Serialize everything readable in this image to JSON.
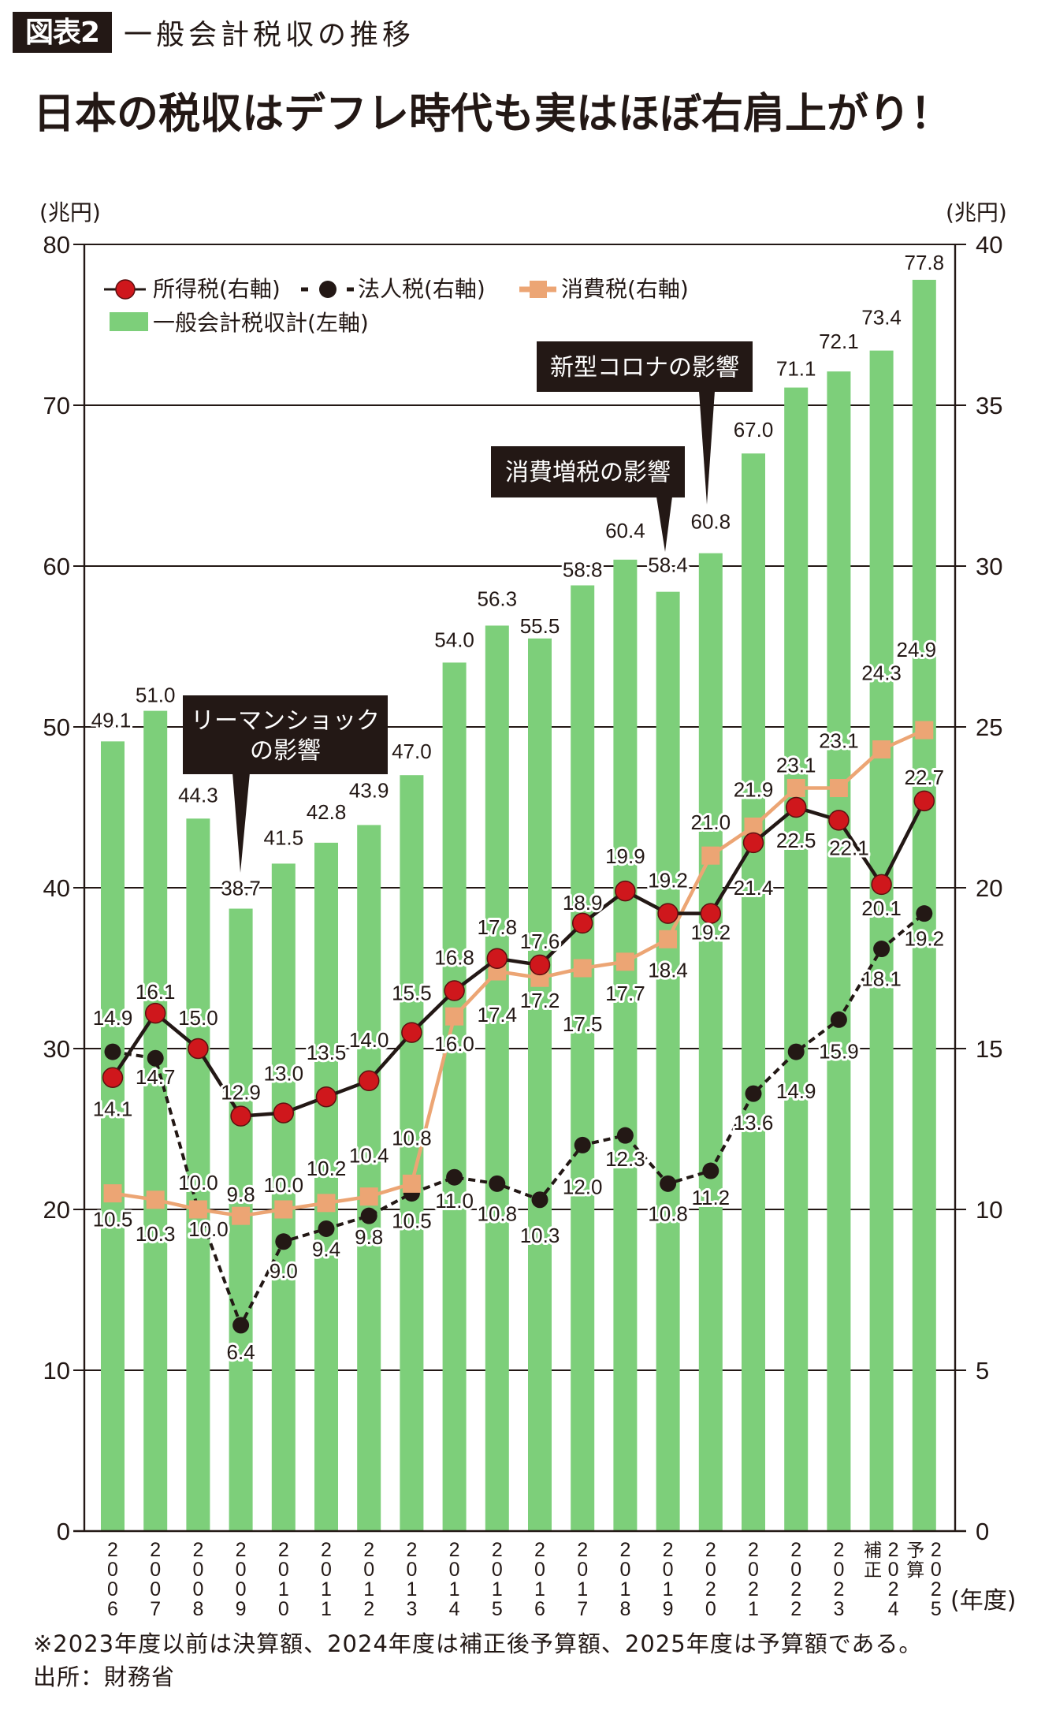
{
  "header": {
    "figure_badge": "図表2",
    "figure_title": "一般会計税収の推移",
    "headline": "日本の税収はデフレ時代も実はほぼ右肩上がり！"
  },
  "footer": {
    "note": "※2023年度以前は決算額、2024年度は補正後予算額、2025年度は予算額である。",
    "source": "出所：財務省"
  },
  "chart_data": {
    "type": "bar",
    "secondary_type": "line",
    "title": "一般会計税収の推移",
    "subtitle": "日本の税収はデフレ時代も実はほぼ右肩上がり！",
    "categories": [
      "2006",
      "2007",
      "2008",
      "2009",
      "2010",
      "2011",
      "2012",
      "2013",
      "2014",
      "2015",
      "2016",
      "2017",
      "2018",
      "2019",
      "2020",
      "2021",
      "2022",
      "2023",
      "2024",
      "2025"
    ],
    "category_prefixes": [
      "",
      "",
      "",
      "",
      "",
      "",
      "",
      "",
      "",
      "",
      "",
      "",
      "",
      "",
      "",
      "",
      "",
      "",
      "補正",
      "予算"
    ],
    "xlabel": "(年度)",
    "ylabel": "(兆円)",
    "ylabel_right": "(兆円)",
    "ylim": [
      0,
      80
    ],
    "ylim_right": [
      0,
      40
    ],
    "yticks": [
      0,
      10,
      20,
      30,
      40,
      50,
      60,
      70,
      80
    ],
    "yticks_right": [
      0,
      5,
      10,
      15,
      20,
      25,
      30,
      35,
      40
    ],
    "grid": true,
    "legend": {
      "placement": "top-left",
      "entries": [
        {
          "label": "所得税(右軸)",
          "series_index": 1
        },
        {
          "label": "法人税(右軸)",
          "series_index": 2
        },
        {
          "label": "消費税(右軸)",
          "series_index": 3
        },
        {
          "label": "一般会計税収計(左軸)",
          "series_index": 0
        }
      ]
    },
    "series": [
      {
        "name": "一般会計税収計",
        "type": "bar",
        "axis": "left",
        "color": "#7dcf7a",
        "values": [
          49.1,
          51.0,
          44.3,
          38.7,
          41.5,
          42.8,
          43.9,
          47.0,
          54.0,
          56.3,
          55.5,
          58.8,
          60.4,
          58.4,
          60.8,
          67.0,
          71.1,
          72.1,
          73.4,
          77.8
        ]
      },
      {
        "name": "所得税",
        "type": "line",
        "axis": "right",
        "marker": "circle",
        "color": "#cf171c",
        "line_color": "#231815",
        "line_style": "solid",
        "values": [
          14.1,
          16.1,
          15.0,
          12.9,
          13.0,
          13.5,
          14.0,
          15.5,
          16.8,
          17.8,
          17.6,
          18.9,
          19.9,
          19.2,
          19.2,
          21.4,
          22.5,
          22.1,
          20.1,
          22.7
        ]
      },
      {
        "name": "法人税",
        "type": "line",
        "axis": "right",
        "marker": "circle",
        "color": "#231815",
        "line_color": "#231815",
        "line_style": "dashed",
        "values": [
          14.9,
          14.7,
          10.0,
          6.4,
          9.0,
          9.4,
          9.8,
          10.5,
          11.0,
          10.8,
          10.3,
          12.0,
          12.3,
          10.8,
          11.2,
          13.6,
          14.9,
          15.9,
          18.1,
          19.2
        ]
      },
      {
        "name": "消費税",
        "type": "line",
        "axis": "right",
        "marker": "square",
        "color": "#eca574",
        "line_color": "#eca574",
        "line_style": "solid",
        "values": [
          10.5,
          10.3,
          10.0,
          9.8,
          10.0,
          10.2,
          10.4,
          10.8,
          16.0,
          17.4,
          17.2,
          17.5,
          17.7,
          18.4,
          21.0,
          21.9,
          23.1,
          23.1,
          24.3,
          24.9
        ]
      }
    ],
    "annotations": [
      {
        "text_lines": [
          "リーマンショック",
          "の影響"
        ],
        "category": "2009"
      },
      {
        "text_lines": [
          "消費増税の影響"
        ],
        "category": "2019"
      },
      {
        "text_lines": [
          "新型コロナの影響"
        ],
        "category": "2020"
      }
    ]
  }
}
